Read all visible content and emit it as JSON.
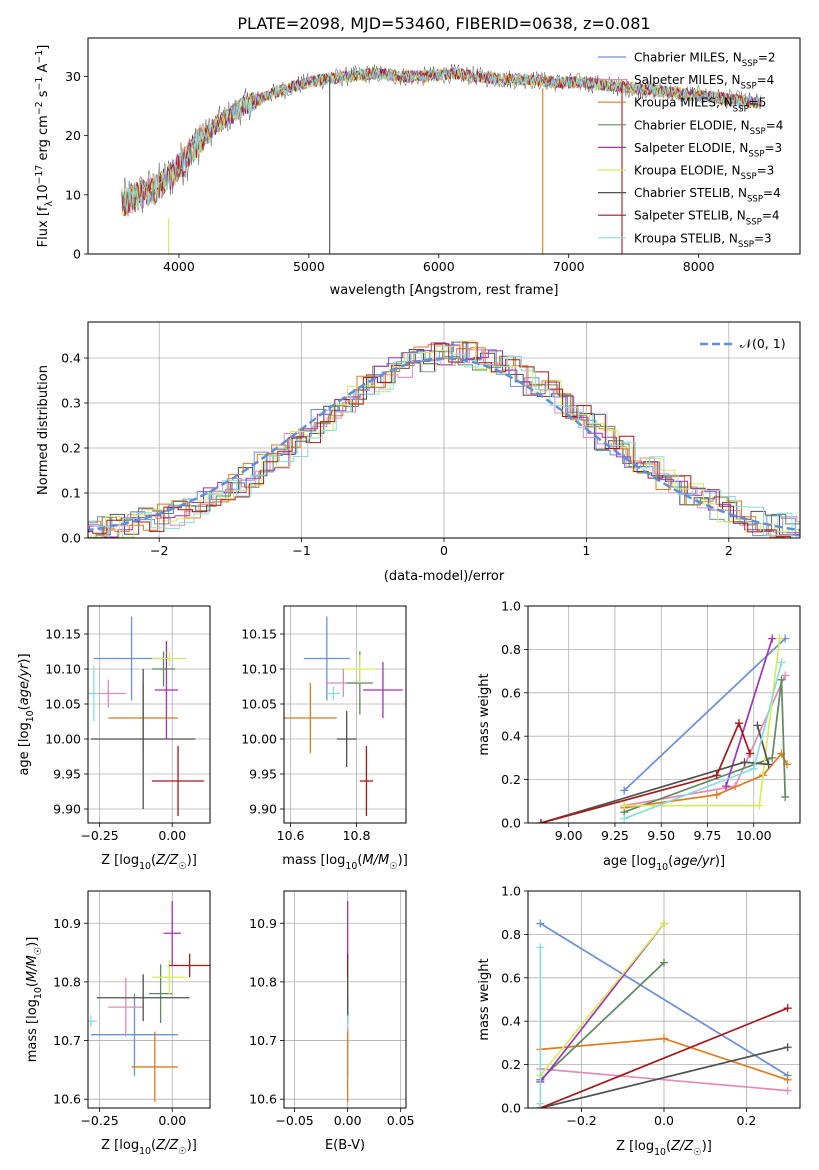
{
  "figure": {
    "title": "PLATE=2098, MJD=53460, FIBERID=0638, z=0.081"
  },
  "models": [
    {
      "name": "Chabrier MILES",
      "nssp": 2,
      "color": "#6a8fdc"
    },
    {
      "name": "Salpeter MILES",
      "nssp": 4,
      "color": "#e58ab6"
    },
    {
      "name": "Kroupa MILES",
      "nssp": 5,
      "color": "#e07b1c"
    },
    {
      "name": "Chabrier ELODIE",
      "nssp": 4,
      "color": "#5e8a5e"
    },
    {
      "name": "Salpeter ELODIE",
      "nssp": 3,
      "color": "#a232b8"
    },
    {
      "name": "Kroupa ELODIE",
      "nssp": 3,
      "color": "#d6ec5a"
    },
    {
      "name": "Chabrier STELIB",
      "nssp": 4,
      "color": "#505050"
    },
    {
      "name": "Salpeter STELIB",
      "nssp": 4,
      "color": "#a61818"
    },
    {
      "name": "Kroupa STELIB",
      "nssp": 3,
      "color": "#88dde0"
    }
  ],
  "chart_data": [
    {
      "id": "spectrum",
      "type": "line",
      "xlabel": "wavelength [Angstrom, rest frame]",
      "ylabel": "Flux [f_λ 10^-17 erg cm^-2 s^-1 A^-1]",
      "xlim": [
        3300,
        8780
      ],
      "ylim": [
        0,
        36.5
      ],
      "xticks": [
        4000,
        5000,
        6000,
        7000,
        8000
      ],
      "yticks": [
        0,
        10,
        20,
        30
      ],
      "grid": false,
      "legend": "top-right",
      "continuum": {
        "x": [
          3550,
          3700,
          3850,
          3950,
          4050,
          4150,
          4300,
          4500,
          4700,
          4900,
          5100,
          5300,
          5500,
          5700,
          5900,
          6100,
          6300,
          6500,
          6700,
          6900,
          7100,
          7300,
          7500,
          7700,
          7900,
          8100,
          8300,
          8480
        ],
        "y": [
          8.5,
          10,
          11.5,
          13.5,
          16,
          19,
          22,
          25,
          27,
          28.5,
          29.5,
          30,
          30.5,
          30,
          30,
          30.5,
          30,
          29.5,
          29.5,
          29,
          29,
          28.5,
          28,
          27.5,
          27,
          26.5,
          26,
          25.5
        ]
      },
      "glitches": [
        {
          "x": 3920,
          "ymin": 0,
          "ymax": 6
        },
        {
          "x": 5160,
          "ymin": 0,
          "ymax": 30
        },
        {
          "x": 6800,
          "ymin": 0,
          "ymax": 28
        },
        {
          "x": 7410,
          "ymin": 0,
          "ymax": 29
        }
      ]
    },
    {
      "id": "residuals",
      "type": "histogram",
      "xlabel": "(data-model)/error",
      "ylabel": "Normed distribution",
      "xlim": [
        -2.5,
        2.5
      ],
      "ylim": [
        0,
        0.48
      ],
      "xticks": [
        -2,
        -1,
        0,
        1,
        2
      ],
      "yticks": [
        0.0,
        0.1,
        0.2,
        0.3,
        0.4
      ],
      "grid": true,
      "legend": "top-right",
      "reference_curve": {
        "label": "𝒩(0, 1)",
        "mean": 0,
        "sigma": 1,
        "color": "#5b8fd8"
      },
      "bin_width": 0.1
    },
    {
      "id": "age-vs-Z",
      "type": "errorbar",
      "xlabel": "Z [log10(Z/Z☉)]",
      "ylabel": "age [log10(age/yr)]",
      "xlim": [
        -0.29,
        0.13
      ],
      "ylim": [
        9.88,
        10.19
      ],
      "xticks": [
        -0.25,
        0.0
      ],
      "yticks": [
        9.9,
        9.95,
        10.0,
        10.05,
        10.1,
        10.15
      ],
      "grid": true,
      "points": [
        {
          "x": -0.14,
          "xerr": 0.13,
          "y": 10.115,
          "yerr": 0.06,
          "color": "#6a8fdc"
        },
        {
          "x": -0.22,
          "xerr": 0.06,
          "y": 10.065,
          "yerr": 0.02,
          "color": "#e58ab6"
        },
        {
          "x": -0.1,
          "xerr": 0.12,
          "y": 10.03,
          "yerr": 0.05,
          "color": "#e07b1c"
        },
        {
          "x": -0.03,
          "xerr": 0.04,
          "y": 10.1,
          "yerr": 0.025,
          "color": "#5e8a5e"
        },
        {
          "x": -0.02,
          "xerr": 0.04,
          "y": 10.07,
          "yerr": 0.07,
          "color": "#a232b8"
        },
        {
          "x": -0.01,
          "xerr": 0.06,
          "y": 10.115,
          "yerr": 0.01,
          "color": "#d6ec5a"
        },
        {
          "x": -0.1,
          "xerr": 0.18,
          "y": 10.0,
          "yerr": 0.1,
          "color": "#505050"
        },
        {
          "x": 0.02,
          "xerr": 0.09,
          "y": 9.94,
          "yerr": 0.05,
          "color": "#a61818"
        },
        {
          "x": -0.27,
          "xerr": 0.02,
          "y": 10.065,
          "yerr": 0.04,
          "color": "#88dde0"
        }
      ]
    },
    {
      "id": "age-vs-mass",
      "type": "errorbar",
      "xlabel": "mass [log10(M/M☉)]",
      "ylabel": "",
      "xlim": [
        10.58,
        10.95
      ],
      "ylim": [
        9.88,
        10.19
      ],
      "xticks": [
        10.6,
        10.8
      ],
      "yticks": [
        9.9,
        9.95,
        10.0,
        10.05,
        10.1,
        10.15
      ],
      "grid": true,
      "points": [
        {
          "x": 10.71,
          "xerr": 0.07,
          "y": 10.115,
          "yerr": 0.06,
          "color": "#6a8fdc"
        },
        {
          "x": 10.76,
          "xerr": 0.05,
          "y": 10.08,
          "yerr": 0.02,
          "color": "#e58ab6"
        },
        {
          "x": 10.66,
          "xerr": 0.08,
          "y": 10.03,
          "yerr": 0.05,
          "color": "#e07b1c"
        },
        {
          "x": 10.81,
          "xerr": 0.04,
          "y": 10.08,
          "yerr": 0.045,
          "color": "#5e8a5e"
        },
        {
          "x": 10.88,
          "xerr": 0.06,
          "y": 10.07,
          "yerr": 0.04,
          "color": "#a232b8"
        },
        {
          "x": 10.81,
          "xerr": 0.05,
          "y": 10.1,
          "yerr": 0.02,
          "color": "#d6ec5a"
        },
        {
          "x": 10.77,
          "xerr": 0.03,
          "y": 10.0,
          "yerr": 0.04,
          "color": "#505050"
        },
        {
          "x": 10.83,
          "xerr": 0.02,
          "y": 9.94,
          "yerr": 0.05,
          "color": "#a61818"
        },
        {
          "x": 10.73,
          "xerr": 0.02,
          "y": 10.065,
          "yerr": 0.01,
          "color": "#88dde0"
        }
      ]
    },
    {
      "id": "weight-vs-age",
      "type": "line",
      "xlabel": "age [log10(age/yr)]",
      "ylabel": "mass weight",
      "xlim": [
        8.78,
        10.25
      ],
      "ylim": [
        0,
        1.0
      ],
      "xticks": [
        9.0,
        9.25,
        9.5,
        9.75,
        10.0
      ],
      "yticks": [
        0.0,
        0.2,
        0.4,
        0.6,
        0.8,
        1.0
      ],
      "grid": true,
      "series": [
        {
          "color": "#6a8fdc",
          "x": [
            9.3,
            10.17
          ],
          "y": [
            0.15,
            0.85
          ]
        },
        {
          "color": "#e58ab6",
          "x": [
            9.3,
            9.9,
            10.17
          ],
          "y": [
            0.08,
            0.17,
            0.68
          ]
        },
        {
          "color": "#e07b1c",
          "x": [
            9.3,
            9.8,
            10.05,
            10.15,
            10.18
          ],
          "y": [
            0.07,
            0.13,
            0.22,
            0.32,
            0.27
          ]
        },
        {
          "color": "#5e8a5e",
          "x": [
            9.3,
            10.1,
            10.15,
            10.17
          ],
          "y": [
            0.05,
            0.3,
            0.66,
            0.12
          ]
        },
        {
          "color": "#a232b8",
          "x": [
            9.85,
            10.1
          ],
          "y": [
            0.17,
            0.85
          ]
        },
        {
          "color": "#d6ec5a",
          "x": [
            9.3,
            10.03,
            10.14
          ],
          "y": [
            0.08,
            0.08,
            0.85
          ]
        },
        {
          "color": "#505050",
          "x": [
            8.85,
            9.95,
            10.08,
            10.02
          ],
          "y": [
            0.0,
            0.28,
            0.27,
            0.45
          ]
        },
        {
          "color": "#a61818",
          "x": [
            8.85,
            9.8,
            9.92,
            9.98
          ],
          "y": [
            0.0,
            0.22,
            0.46,
            0.32
          ]
        },
        {
          "color": "#88dde0",
          "x": [
            9.3,
            10.0,
            10.15
          ],
          "y": [
            0.02,
            0.25,
            0.74
          ]
        }
      ]
    },
    {
      "id": "mass-vs-Z",
      "type": "errorbar",
      "xlabel": "Z [log10(Z/Z☉)]",
      "ylabel": "mass [log10(M/M☉)]",
      "xlim": [
        -0.29,
        0.13
      ],
      "ylim": [
        10.585,
        10.955
      ],
      "xticks": [
        -0.25,
        0.0
      ],
      "yticks": [
        10.6,
        10.7,
        10.8,
        10.9
      ],
      "grid": true,
      "points": [
        {
          "x": -0.13,
          "xerr": 0.15,
          "y": 10.71,
          "yerr": 0.07,
          "color": "#6a8fdc"
        },
        {
          "x": -0.16,
          "xerr": 0.06,
          "y": 10.757,
          "yerr": 0.05,
          "color": "#e58ab6"
        },
        {
          "x": -0.06,
          "xerr": 0.08,
          "y": 10.655,
          "yerr": 0.06,
          "color": "#e07b1c"
        },
        {
          "x": -0.04,
          "xerr": 0.04,
          "y": 10.78,
          "yerr": 0.05,
          "color": "#5e8a5e"
        },
        {
          "x": 0.0,
          "xerr": 0.03,
          "y": 10.883,
          "yerr": 0.055,
          "color": "#a232b8"
        },
        {
          "x": -0.01,
          "xerr": 0.06,
          "y": 10.808,
          "yerr": 0.03,
          "color": "#d6ec5a"
        },
        {
          "x": -0.1,
          "xerr": 0.16,
          "y": 10.773,
          "yerr": 0.04,
          "color": "#505050"
        },
        {
          "x": 0.06,
          "xerr": 0.07,
          "y": 10.828,
          "yerr": 0.02,
          "color": "#a61818"
        },
        {
          "x": -0.28,
          "xerr": 0.02,
          "y": 10.733,
          "yerr": 0.01,
          "color": "#88dde0"
        }
      ]
    },
    {
      "id": "mass-vs-EBV",
      "type": "errorbar",
      "xlabel": "E(B-V)",
      "ylabel": "",
      "xlim": [
        -0.06,
        0.055
      ],
      "ylim": [
        10.585,
        10.955
      ],
      "xticks": [
        -0.05,
        0.0,
        0.05
      ],
      "yticks": [
        10.6,
        10.7,
        10.8,
        10.9
      ],
      "grid": true,
      "points": [
        {
          "x": 0.0,
          "xerr": 0,
          "y": 10.71,
          "yerr": 0.07,
          "color": "#6a8fdc"
        },
        {
          "x": 0.0,
          "xerr": 0,
          "y": 10.757,
          "yerr": 0.05,
          "color": "#e58ab6"
        },
        {
          "x": 0.0,
          "xerr": 0,
          "y": 10.655,
          "yerr": 0.06,
          "color": "#e07b1c"
        },
        {
          "x": 0.0,
          "xerr": 0,
          "y": 10.78,
          "yerr": 0.05,
          "color": "#5e8a5e"
        },
        {
          "x": 0.0,
          "xerr": 0,
          "y": 10.883,
          "yerr": 0.055,
          "color": "#a232b8"
        },
        {
          "x": 0.0,
          "xerr": 0,
          "y": 10.808,
          "yerr": 0.03,
          "color": "#d6ec5a"
        },
        {
          "x": 0.0,
          "xerr": 0,
          "y": 10.773,
          "yerr": 0.04,
          "color": "#505050"
        },
        {
          "x": 0.0,
          "xerr": 0,
          "y": 10.828,
          "yerr": 0.02,
          "color": "#a61818"
        },
        {
          "x": 0.0,
          "xerr": 0,
          "y": 10.733,
          "yerr": 0.01,
          "color": "#88dde0"
        }
      ]
    },
    {
      "id": "weight-vs-Z",
      "type": "line",
      "xlabel": "Z [log10(Z/Z☉)]",
      "ylabel": "mass weight",
      "xlim": [
        -0.33,
        0.33
      ],
      "ylim": [
        0,
        1.0
      ],
      "xticks": [
        -0.2,
        0.0,
        0.2
      ],
      "yticks": [
        0.0,
        0.2,
        0.4,
        0.6,
        0.8,
        1.0
      ],
      "grid": true,
      "series": [
        {
          "color": "#6a8fdc",
          "x": [
            -0.3,
            0.3
          ],
          "y": [
            0.85,
            0.15
          ]
        },
        {
          "color": "#e58ab6",
          "x": [
            -0.3,
            0.3
          ],
          "y": [
            0.18,
            0.08
          ]
        },
        {
          "color": "#e07b1c",
          "x": [
            -0.3,
            0.0,
            0.3
          ],
          "y": [
            0.27,
            0.32,
            0.13
          ]
        },
        {
          "color": "#5e8a5e",
          "x": [
            -0.3,
            0.0
          ],
          "y": [
            0.13,
            0.67
          ]
        },
        {
          "color": "#a232b8",
          "x": [
            -0.3,
            0.0
          ],
          "y": [
            0.12,
            0.85
          ]
        },
        {
          "color": "#d6ec5a",
          "x": [
            -0.3,
            0.0
          ],
          "y": [
            0.15,
            0.85
          ]
        },
        {
          "color": "#505050",
          "x": [
            -0.3,
            0.3
          ],
          "y": [
            0.0,
            0.28
          ]
        },
        {
          "color": "#a61818",
          "x": [
            -0.3,
            0.3
          ],
          "y": [
            0.0,
            0.46
          ]
        },
        {
          "color": "#88dde0",
          "x": [
            -0.3,
            -0.3
          ],
          "y": [
            0.02,
            0.74
          ]
        }
      ]
    }
  ]
}
